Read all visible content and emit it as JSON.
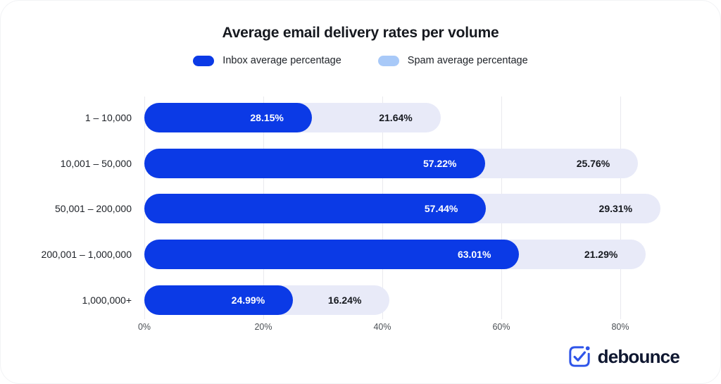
{
  "header": {
    "title": "Average email delivery rates per volume"
  },
  "legend": [
    {
      "label": "Inbox average percentage",
      "color": "#0b3ae6"
    },
    {
      "label": "Spam average percentage",
      "color": "#a8c9f8"
    }
  ],
  "chart_data": {
    "type": "bar",
    "orientation": "horizontal",
    "stacked": true,
    "title": "Average email delivery rates per volume",
    "categories": [
      "1 – 10,000",
      "10,001 – 50,000",
      "50,001 – 200,000",
      "200,001 – 1,000,000",
      "1,000,000+"
    ],
    "series": [
      {
        "name": "Inbox average percentage",
        "values": [
          28.15,
          57.22,
          57.44,
          63.01,
          24.99
        ],
        "color": "#0b3ae6",
        "label_color": "#ffffff"
      },
      {
        "name": "Spam average percentage",
        "values": [
          21.64,
          25.76,
          29.31,
          21.29,
          16.24
        ],
        "color": "#e8eaf8",
        "label_color": "#16191f"
      }
    ],
    "x_ticks": [
      "0%",
      "20%",
      "40%",
      "60%",
      "80%"
    ],
    "x_tick_values": [
      0,
      20,
      40,
      60,
      80
    ],
    "xlim": [
      0,
      88
    ],
    "value_suffix": "%",
    "grid": "vertical",
    "legend_position": "top"
  },
  "footer": {
    "brand": "debounce"
  }
}
